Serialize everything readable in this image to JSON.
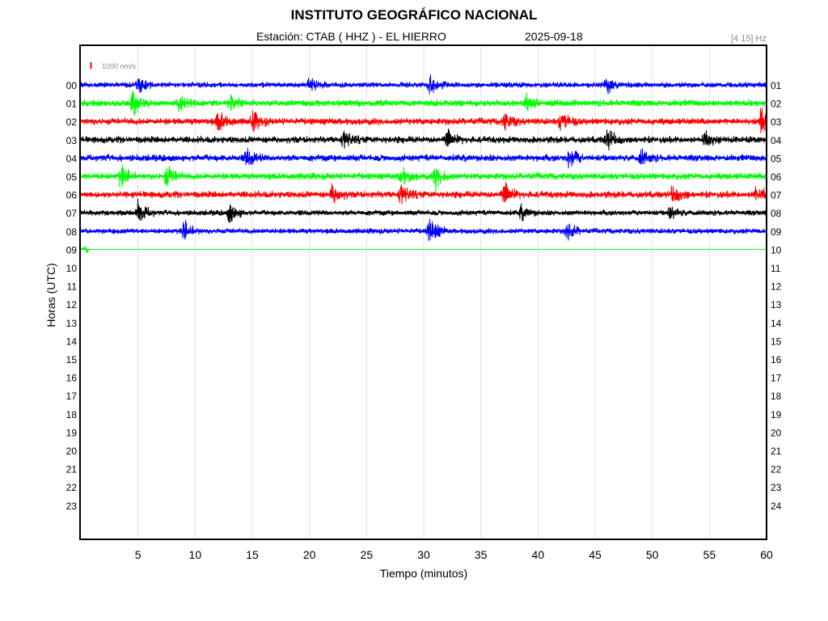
{
  "header": {
    "title": "INSTITUTO GEOGRÁFICO NACIONAL",
    "station": "Estación:  CTAB ( HHZ ) - EL HIERRO",
    "date": "2025-09-18",
    "filter": "[4 15] Hz"
  },
  "chart_data": {
    "type": "line",
    "title": "INSTITUTO GEOGRÁFICO NACIONAL",
    "subtitle": "Estación:  CTAB ( HHZ ) - EL HIERRO",
    "date": "2025-09-18",
    "filter_band": "[4 15] Hz",
    "xlabel": "Tiempo (minutos)",
    "ylabel": "Horas (UTC)",
    "xlim": [
      0,
      60
    ],
    "x_ticks": [
      "5",
      "10",
      "15",
      "20",
      "25",
      "30",
      "35",
      "40",
      "45",
      "50",
      "55",
      "60"
    ],
    "y_ticks_left": [
      "00",
      "01",
      "02",
      "03",
      "04",
      "05",
      "06",
      "07",
      "08",
      "09",
      "10",
      "11",
      "12",
      "13",
      "14",
      "15",
      "16",
      "17",
      "18",
      "19",
      "20",
      "21",
      "22",
      "23"
    ],
    "y_ticks_right": [
      "01",
      "02",
      "03",
      "04",
      "05",
      "06",
      "07",
      "08",
      "09",
      "10",
      "11",
      "12",
      "13",
      "14",
      "15",
      "16",
      "17",
      "18",
      "19",
      "20",
      "21",
      "22",
      "23",
      "24"
    ],
    "grid": "vertical",
    "scale_bar": {
      "label": "1000 nm/s",
      "color": "#ff0000"
    },
    "color_cycle": [
      "#0000ff",
      "#00ff00",
      "#ff0000",
      "#000000"
    ],
    "series": [
      {
        "hour": "00",
        "color": "#0000ff",
        "end_minute": 60,
        "base_amplitude": 4,
        "events": [
          [
            5,
            1.8
          ],
          [
            20,
            1.7
          ],
          [
            30.5,
            2.0
          ],
          [
            46,
            1.7
          ]
        ]
      },
      {
        "hour": "01",
        "color": "#00ff00",
        "end_minute": 60,
        "base_amplitude": 5,
        "events": [
          [
            4.5,
            2.0
          ],
          [
            8.5,
            1.6
          ],
          [
            13,
            1.5
          ],
          [
            39,
            1.4
          ]
        ]
      },
      {
        "hour": "02",
        "color": "#ff0000",
        "end_minute": 60,
        "base_amplitude": 5,
        "events": [
          [
            12,
            1.8
          ],
          [
            15,
            1.7
          ],
          [
            37,
            1.6
          ],
          [
            42,
            1.8
          ],
          [
            59.5,
            2.2
          ]
        ]
      },
      {
        "hour": "03",
        "color": "#000000",
        "end_minute": 60,
        "base_amplitude": 5,
        "events": [
          [
            23,
            1.8
          ],
          [
            32,
            1.6
          ],
          [
            46,
            1.9
          ],
          [
            54.5,
            1.5
          ]
        ]
      },
      {
        "hour": "04",
        "color": "#0000ff",
        "end_minute": 60,
        "base_amplitude": 5,
        "events": [
          [
            14.5,
            1.6
          ],
          [
            42.7,
            1.8
          ],
          [
            49,
            1.4
          ]
        ]
      },
      {
        "hour": "05",
        "color": "#00ff00",
        "end_minute": 60,
        "base_amplitude": 5,
        "events": [
          [
            3.5,
            1.9
          ],
          [
            7.5,
            1.8
          ],
          [
            28,
            1.6
          ],
          [
            31,
            2.0
          ]
        ]
      },
      {
        "hour": "06",
        "color": "#ff0000",
        "end_minute": 60,
        "base_amplitude": 5,
        "events": [
          [
            22,
            1.6
          ],
          [
            28,
            2.0
          ],
          [
            37,
            1.9
          ],
          [
            51.8,
            1.7
          ],
          [
            59,
            1.6
          ]
        ]
      },
      {
        "hour": "07",
        "color": "#000000",
        "end_minute": 60,
        "base_amplitude": 4,
        "events": [
          [
            5,
            2.4
          ],
          [
            13,
            2.2
          ],
          [
            38.5,
            1.5
          ],
          [
            51.5,
            1.6
          ]
        ]
      },
      {
        "hour": "08",
        "color": "#0000ff",
        "end_minute": 60,
        "base_amplitude": 4,
        "events": [
          [
            9,
            2.3
          ],
          [
            30.5,
            2.8
          ],
          [
            42.5,
            2.0
          ]
        ]
      },
      {
        "hour": "09",
        "color": "#00ff00",
        "end_minute": 0.4,
        "base_amplitude": 1,
        "events": []
      }
    ]
  }
}
